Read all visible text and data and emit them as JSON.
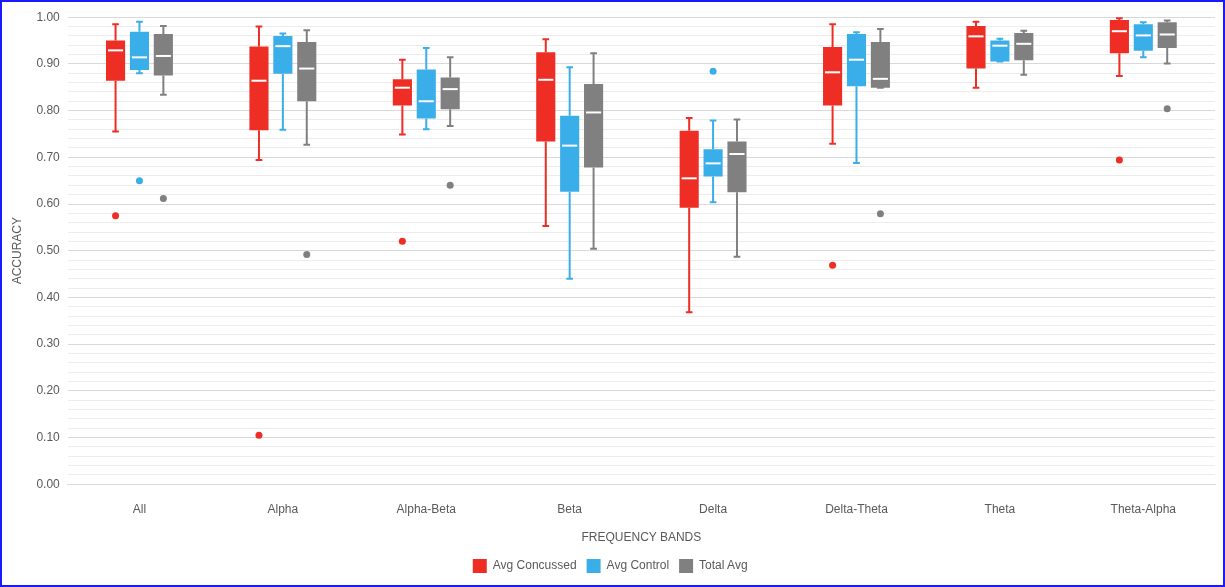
{
  "chart_data": {
    "type": "box",
    "xlabel": "FREQUENCY BANDS",
    "ylabel": "ACCURACY",
    "categories": [
      "All",
      "Alpha",
      "Alpha-Beta",
      "Beta",
      "Delta",
      "Delta-Theta",
      "Theta",
      "Theta-Alpha"
    ],
    "ylim": [
      0,
      1
    ],
    "yticks": [
      {
        "value": 0,
        "label": "0.00"
      },
      {
        "value": 0.02,
        "label": null
      },
      {
        "value": 0.04,
        "label": null
      },
      {
        "value": 0.06,
        "label": null
      },
      {
        "value": 0.08,
        "label": null
      },
      {
        "value": 0.1,
        "label": "0.10"
      },
      {
        "value": 0.12,
        "label": null
      },
      {
        "value": 0.14,
        "label": null
      },
      {
        "value": 0.16,
        "label": null
      },
      {
        "value": 0.18,
        "label": null
      },
      {
        "value": 0.2,
        "label": "0.20"
      },
      {
        "value": 0.22,
        "label": null
      },
      {
        "value": 0.24,
        "label": null
      },
      {
        "value": 0.26,
        "label": null
      },
      {
        "value": 0.28,
        "label": null
      },
      {
        "value": 0.3,
        "label": "0.30"
      },
      {
        "value": 0.32,
        "label": null
      },
      {
        "value": 0.34,
        "label": null
      },
      {
        "value": 0.36,
        "label": null
      },
      {
        "value": 0.38,
        "label": null
      },
      {
        "value": 0.4,
        "label": "0.40"
      },
      {
        "value": 0.42,
        "label": null
      },
      {
        "value": 0.44,
        "label": null
      },
      {
        "value": 0.46,
        "label": null
      },
      {
        "value": 0.48,
        "label": null
      },
      {
        "value": 0.5,
        "label": "0.50"
      },
      {
        "value": 0.52,
        "label": null
      },
      {
        "value": 0.54,
        "label": null
      },
      {
        "value": 0.56,
        "label": null
      },
      {
        "value": 0.58,
        "label": null
      },
      {
        "value": 0.6,
        "label": "0.60"
      },
      {
        "value": 0.62,
        "label": null
      },
      {
        "value": 0.64,
        "label": null
      },
      {
        "value": 0.66,
        "label": null
      },
      {
        "value": 0.68,
        "label": null
      },
      {
        "value": 0.7,
        "label": "0.70"
      },
      {
        "value": 0.72,
        "label": null
      },
      {
        "value": 0.74,
        "label": null
      },
      {
        "value": 0.76,
        "label": null
      },
      {
        "value": 0.78,
        "label": null
      },
      {
        "value": 0.8,
        "label": "0.80"
      },
      {
        "value": 0.82,
        "label": null
      },
      {
        "value": 0.84,
        "label": null
      },
      {
        "value": 0.86,
        "label": null
      },
      {
        "value": 0.88,
        "label": null
      },
      {
        "value": 0.9,
        "label": "0.90"
      },
      {
        "value": 0.92,
        "label": null
      },
      {
        "value": 0.94,
        "label": null
      },
      {
        "value": 0.96,
        "label": null
      },
      {
        "value": 0.98,
        "label": null
      },
      {
        "value": 1,
        "label": "1.00"
      }
    ],
    "grid": "y",
    "legend": "bottom",
    "series": [
      {
        "name": "Avg Concussed",
        "color": "#ee2e24",
        "boxes": [
          {
            "low": 0.755,
            "q1": 0.864,
            "median": 0.929,
            "q3": 0.95,
            "high": 0.985,
            "outliers": [
              0.575
            ]
          },
          {
            "low": 0.694,
            "q1": 0.758,
            "median": 0.864,
            "q3": 0.937,
            "high": 0.98,
            "outliers": [
              0.105
            ]
          },
          {
            "low": 0.749,
            "q1": 0.811,
            "median": 0.849,
            "q3": 0.867,
            "high": 0.909,
            "outliers": [
              0.52
            ]
          },
          {
            "low": 0.553,
            "q1": 0.734,
            "median": 0.866,
            "q3": 0.925,
            "high": 0.953
          },
          {
            "low": 0.368,
            "q1": 0.592,
            "median": 0.655,
            "q3": 0.757,
            "high": 0.784
          },
          {
            "low": 0.729,
            "q1": 0.811,
            "median": 0.882,
            "q3": 0.936,
            "high": 0.985,
            "outliers": [
              0.469
            ]
          },
          {
            "low": 0.849,
            "q1": 0.89,
            "median": 0.959,
            "q3": 0.981,
            "high": 0.99
          },
          {
            "low": 0.874,
            "q1": 0.923,
            "median": 0.97,
            "q3": 0.994,
            "high": 0.998,
            "outliers": [
              0.694
            ]
          }
        ]
      },
      {
        "name": "Avg Control",
        "color": "#3aaee8",
        "boxes": [
          {
            "low": 0.88,
            "q1": 0.887,
            "median": 0.914,
            "q3": 0.969,
            "high": 0.99,
            "outliers": [
              0.65
            ]
          },
          {
            "low": 0.759,
            "q1": 0.879,
            "median": 0.938,
            "q3": 0.96,
            "high": 0.965
          },
          {
            "low": 0.76,
            "q1": 0.783,
            "median": 0.82,
            "q3": 0.888,
            "high": 0.934
          },
          {
            "low": 0.44,
            "q1": 0.626,
            "median": 0.725,
            "q3": 0.789,
            "high": 0.893
          },
          {
            "low": 0.604,
            "q1": 0.659,
            "median": 0.687,
            "q3": 0.717,
            "high": 0.779,
            "outliers": [
              0.884
            ]
          },
          {
            "low": 0.688,
            "q1": 0.852,
            "median": 0.909,
            "q3": 0.964,
            "high": 0.968
          },
          {
            "low": 0.905,
            "q1": 0.905,
            "median": 0.939,
            "q3": 0.95,
            "high": 0.954
          },
          {
            "low": 0.914,
            "q1": 0.928,
            "median": 0.961,
            "q3": 0.985,
            "high": 0.989
          }
        ]
      },
      {
        "name": "Total Avg",
        "color": "#808080",
        "boxes": [
          {
            "low": 0.834,
            "q1": 0.875,
            "median": 0.917,
            "q3": 0.964,
            "high": 0.981,
            "outliers": [
              0.612
            ]
          },
          {
            "low": 0.727,
            "q1": 0.82,
            "median": 0.89,
            "q3": 0.947,
            "high": 0.972,
            "outliers": [
              0.492
            ]
          },
          {
            "low": 0.767,
            "q1": 0.803,
            "median": 0.846,
            "q3": 0.871,
            "high": 0.914,
            "outliers": [
              0.64
            ]
          },
          {
            "low": 0.504,
            "q1": 0.678,
            "median": 0.796,
            "q3": 0.857,
            "high": 0.923
          },
          {
            "low": 0.487,
            "q1": 0.625,
            "median": 0.707,
            "q3": 0.734,
            "high": 0.781
          },
          {
            "low": 0.849,
            "q1": 0.849,
            "median": 0.868,
            "q3": 0.947,
            "high": 0.975,
            "outliers": [
              0.579
            ]
          },
          {
            "low": 0.877,
            "q1": 0.908,
            "median": 0.943,
            "q3": 0.966,
            "high": 0.971
          },
          {
            "low": 0.901,
            "q1": 0.934,
            "median": 0.963,
            "q3": 0.989,
            "high": 0.993,
            "outliers": [
              0.804
            ]
          }
        ]
      }
    ]
  }
}
